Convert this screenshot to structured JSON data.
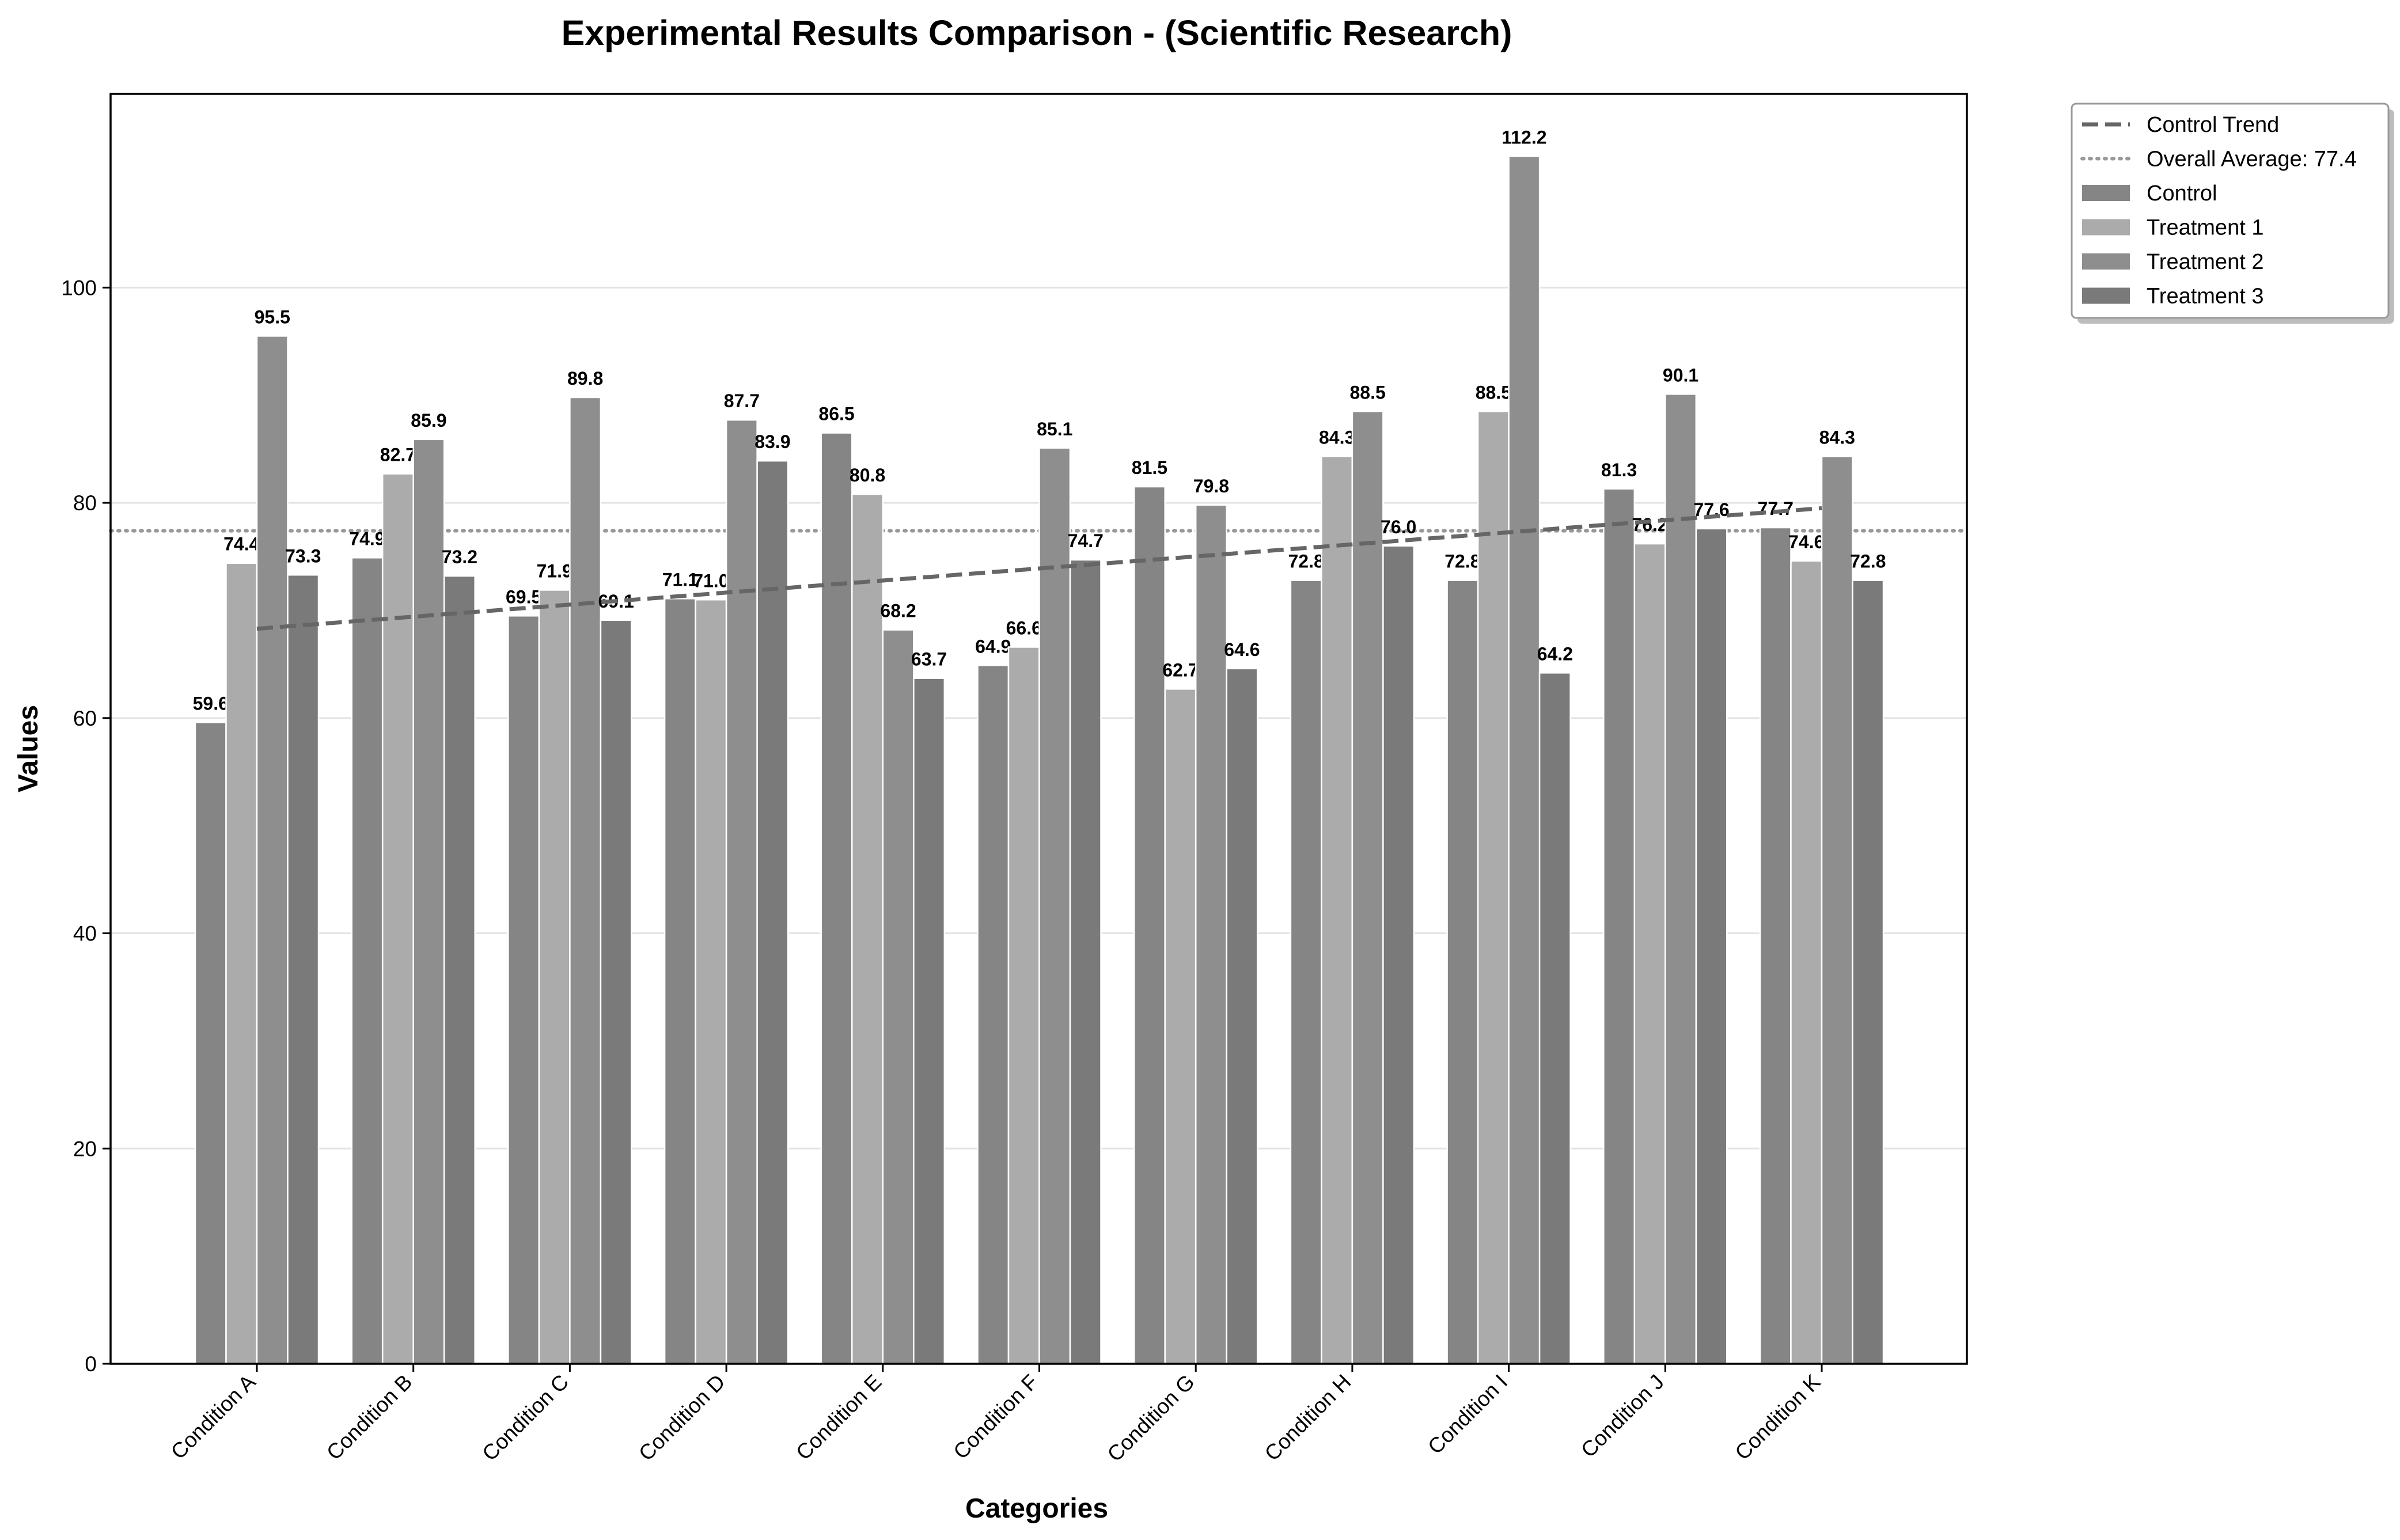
{
  "chart_data": {
    "type": "bar",
    "title": "Experimental Results Comparison - (Scientific Research)",
    "xlabel": "Categories",
    "ylabel": "Values",
    "ylim": [
      0,
      118
    ],
    "yticks": [
      0,
      20,
      40,
      60,
      80,
      100
    ],
    "grid": "horizontal",
    "legend_position": "outside top-right",
    "categories": [
      "Condition A",
      "Condition B",
      "Condition C",
      "Condition D",
      "Condition E",
      "Condition F",
      "Condition G",
      "Condition H",
      "Condition I",
      "Condition J",
      "Condition K"
    ],
    "series": [
      {
        "name": "Control",
        "color": "#858585",
        "values": [
          59.6,
          74.9,
          69.5,
          71.1,
          86.5,
          64.9,
          81.5,
          72.8,
          72.8,
          81.3,
          77.7
        ]
      },
      {
        "name": "Treatment 1",
        "color": "#ababab",
        "values": [
          74.4,
          82.7,
          71.9,
          71.0,
          80.8,
          66.6,
          62.7,
          84.3,
          88.5,
          76.2,
          74.6
        ]
      },
      {
        "name": "Treatment 2",
        "color": "#8e8e8e",
        "values": [
          95.5,
          85.9,
          89.8,
          87.7,
          68.2,
          85.1,
          79.8,
          88.5,
          112.2,
          90.1,
          84.3
        ]
      },
      {
        "name": "Treatment 3",
        "color": "#7a7a7a",
        "values": [
          73.3,
          73.2,
          69.1,
          83.9,
          63.7,
          74.7,
          64.6,
          76.0,
          64.2,
          77.6,
          72.8
        ]
      }
    ],
    "control_trend": {
      "name": "Control Trend",
      "style": "dashed",
      "color": "#666666",
      "start": 68.3,
      "end": 79.5
    },
    "overall_average": {
      "label": "Overall Average: 77.4",
      "value": 77.4,
      "style": "dotted",
      "color": "#999999"
    },
    "legend": [
      "Control Trend",
      "Overall Average: 77.4",
      "Control",
      "Treatment 1",
      "Treatment 2",
      "Treatment 3"
    ]
  }
}
